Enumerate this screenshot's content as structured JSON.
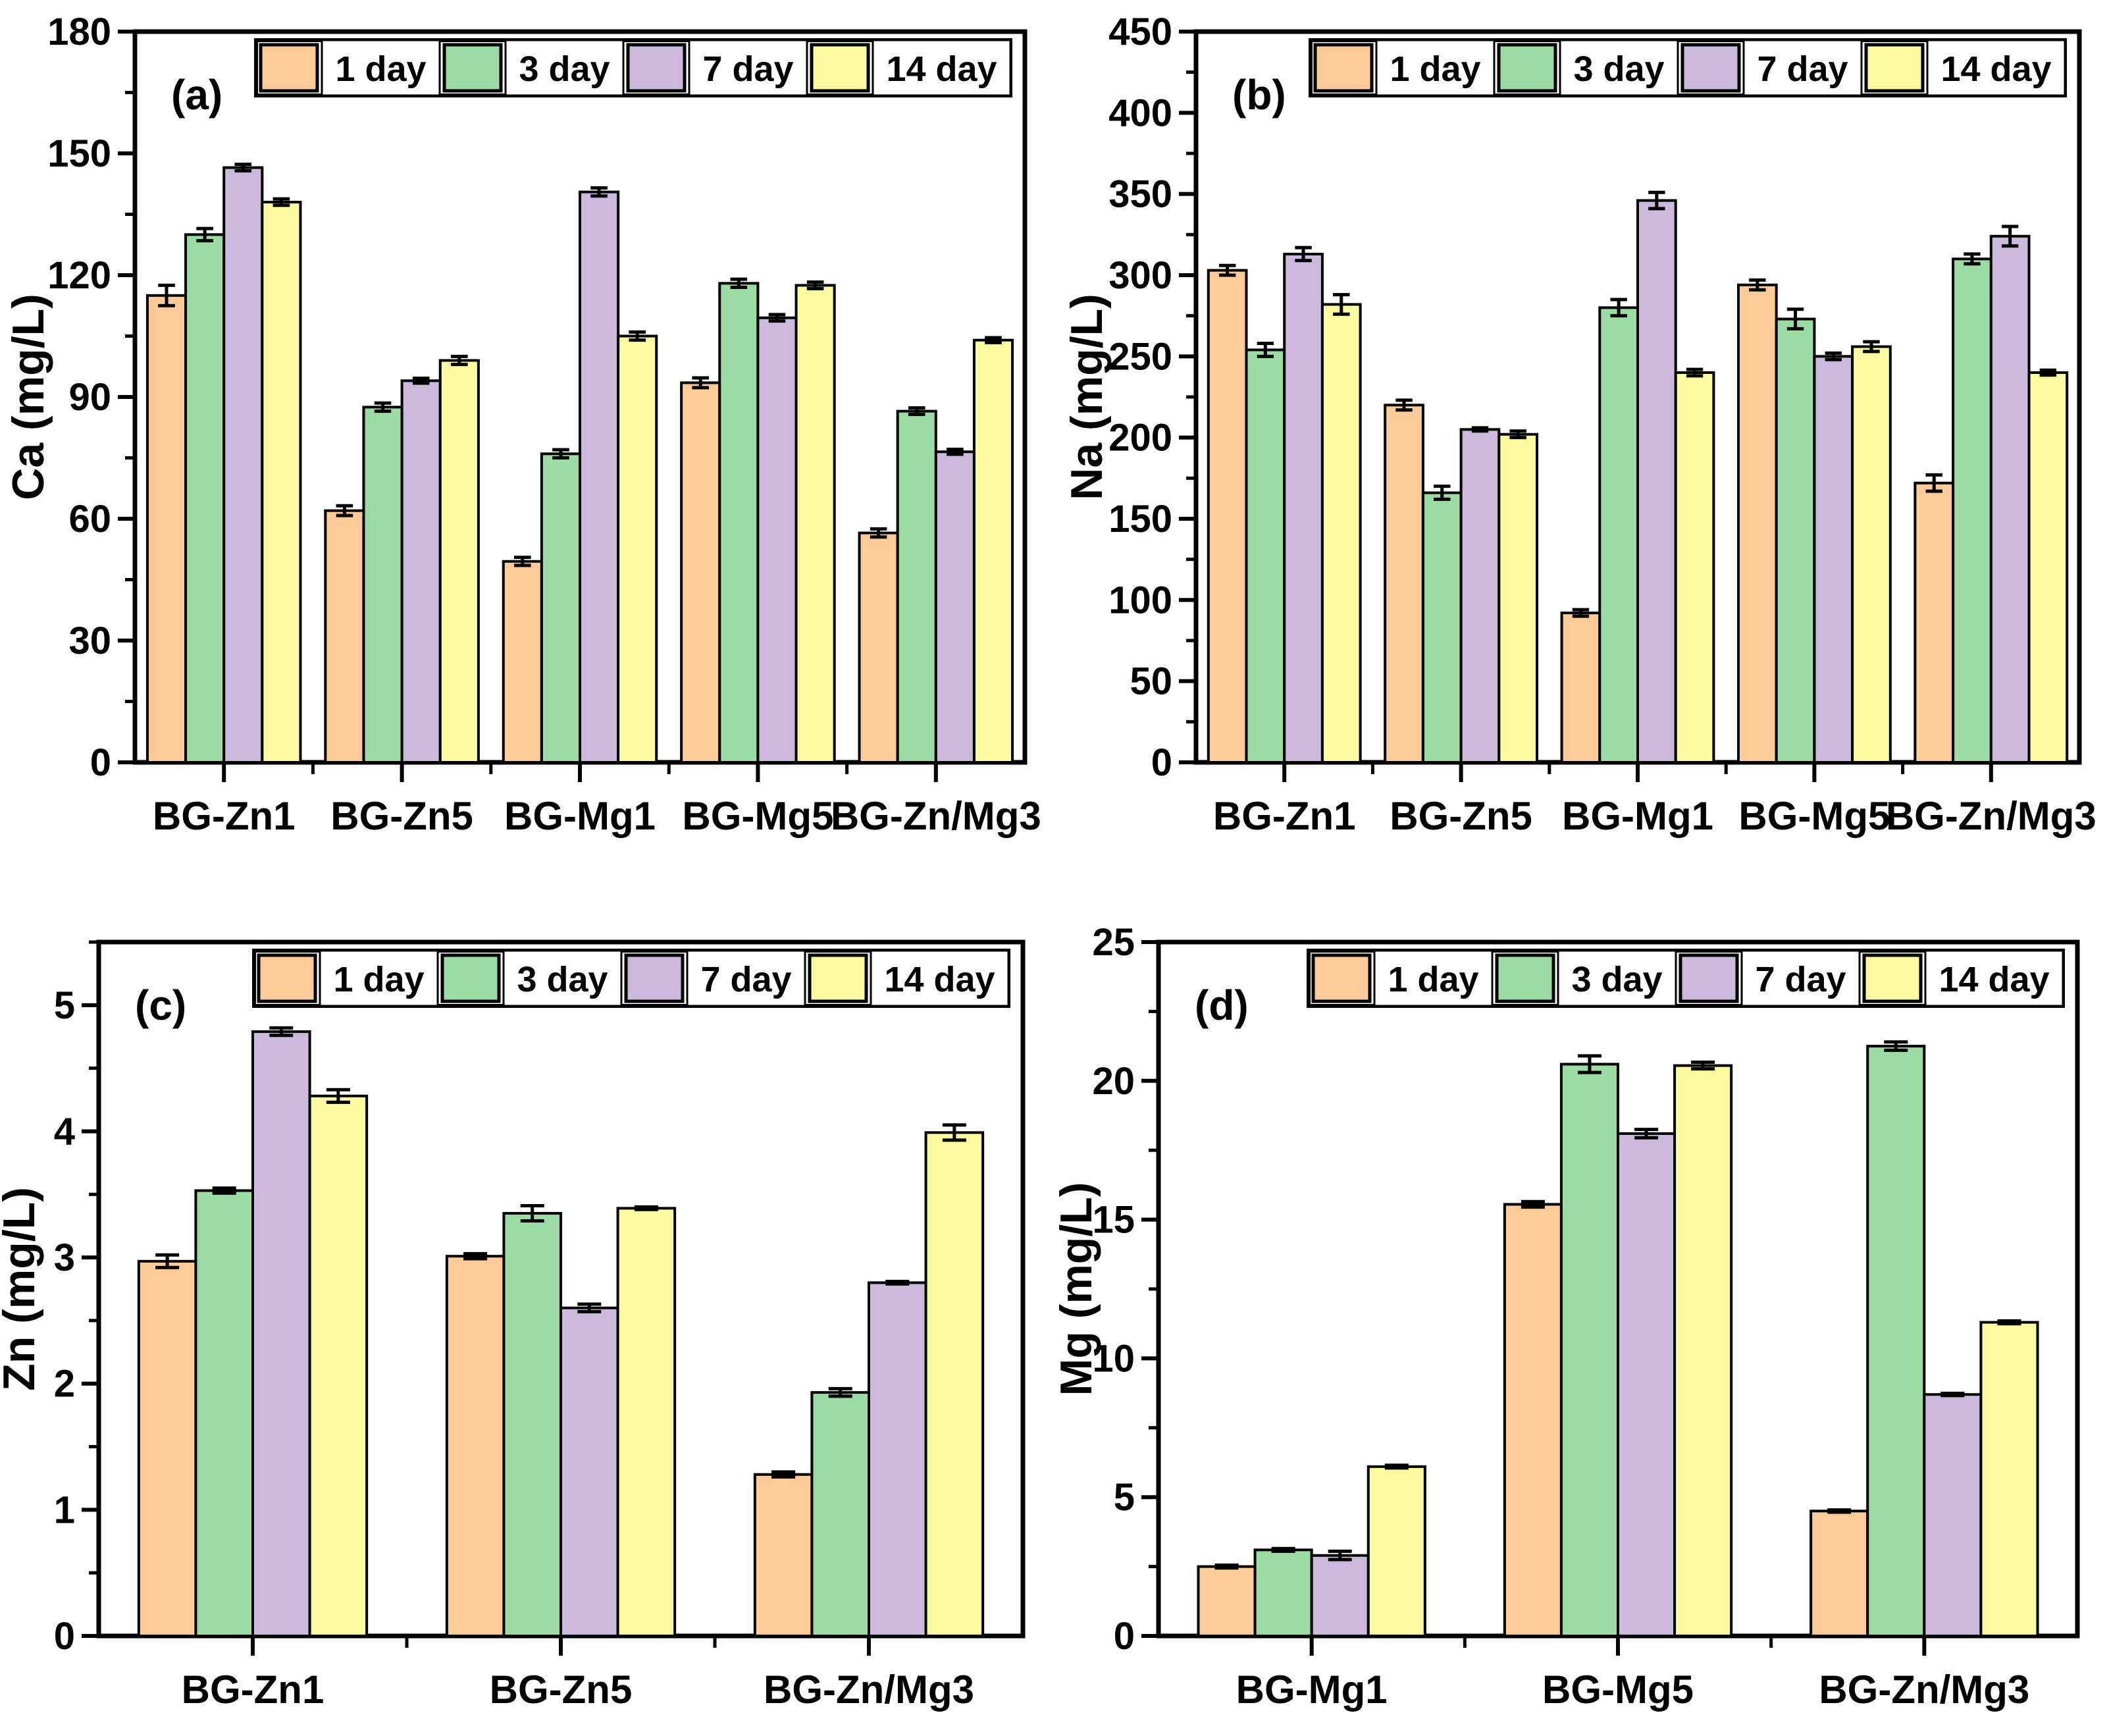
{
  "figure": {
    "background": "#ffffff",
    "foreground": "#000000",
    "legend_labels": [
      "1 day",
      "3 day",
      "7 day",
      "14 day"
    ],
    "series_colors": {
      "1 day": "#FCCB97",
      "3 day": "#9BDCA4",
      "7 day": "#CBBADC",
      "14 day": "#FDFB9F"
    },
    "bar_border_color": "#000000"
  },
  "chart_data": [
    {
      "type": "bar",
      "panel_label": "(a)",
      "ylabel": "Ca (mg/L)",
      "xlabel": "",
      "ylim": [
        0,
        180
      ],
      "ytick_major": 30,
      "ytick_minor": 15,
      "yticks": [
        0,
        30,
        60,
        90,
        120,
        150,
        180
      ],
      "grid": false,
      "legend_position": "top-right-inside",
      "categories": [
        "BG-Zn1",
        "BG-Zn5",
        "BG-Mg1",
        "BG-Mg5",
        "BG-Zn/Mg3"
      ],
      "series": [
        {
          "name": "1 day",
          "values": [
            115,
            62,
            49.5,
            93.5,
            56.5
          ],
          "errors": [
            2.5,
            1.2,
            1.0,
            1.2,
            1.0
          ]
        },
        {
          "name": "3 day",
          "values": [
            130,
            87.5,
            76,
            118,
            86.5
          ],
          "errors": [
            1.5,
            1.0,
            1.0,
            1.0,
            0.8
          ]
        },
        {
          "name": "7 day",
          "values": [
            146.5,
            94,
            140.5,
            109.5,
            76.5
          ],
          "errors": [
            0.8,
            0.6,
            1.0,
            0.8,
            0.6
          ]
        },
        {
          "name": "14 day",
          "values": [
            138,
            99,
            105,
            117.5,
            104
          ],
          "errors": [
            0.8,
            1.0,
            1.0,
            0.8,
            0.6
          ]
        }
      ]
    },
    {
      "type": "bar",
      "panel_label": "(b)",
      "ylabel": "Na (mg/L)",
      "xlabel": "",
      "ylim": [
        0,
        450
      ],
      "ytick_major": 50,
      "ytick_minor": 25,
      "yticks": [
        0,
        50,
        100,
        150,
        200,
        250,
        300,
        350,
        400,
        450
      ],
      "grid": false,
      "legend_position": "top-right-inside",
      "categories": [
        "BG-Zn1",
        "BG-Zn5",
        "BG-Mg1",
        "BG-Mg5",
        "BG-Zn/Mg3"
      ],
      "series": [
        {
          "name": "1 day",
          "values": [
            303,
            220,
            92,
            294,
            172
          ],
          "errors": [
            3,
            3,
            2,
            3,
            5
          ]
        },
        {
          "name": "3 day",
          "values": [
            254,
            166,
            280,
            273,
            310
          ],
          "errors": [
            4,
            4,
            5,
            6,
            3
          ]
        },
        {
          "name": "7 day",
          "values": [
            313,
            205,
            346,
            250,
            324
          ],
          "errors": [
            4,
            1,
            5,
            2,
            6
          ]
        },
        {
          "name": "14 day",
          "values": [
            282,
            202,
            240,
            256,
            240
          ],
          "errors": [
            6,
            2,
            2,
            3,
            1.5
          ]
        }
      ]
    },
    {
      "type": "bar",
      "panel_label": "(c)",
      "ylabel": "Zn (mg/L)",
      "xlabel": "",
      "ylim": [
        0,
        5.5
      ],
      "ytick_major": 1,
      "ytick_minor": 0.5,
      "yticks": [
        0,
        1,
        2,
        3,
        4,
        5
      ],
      "grid": false,
      "legend_position": "top-right-inside",
      "categories": [
        "BG-Zn1",
        "BG-Zn5",
        "BG-Zn/Mg3"
      ],
      "series": [
        {
          "name": "1 day",
          "values": [
            2.97,
            3.01,
            1.28
          ],
          "errors": [
            0.05,
            0.02,
            0.02
          ]
        },
        {
          "name": "3 day",
          "values": [
            3.53,
            3.35,
            1.93
          ],
          "errors": [
            0.02,
            0.06,
            0.03
          ]
        },
        {
          "name": "7 day",
          "values": [
            4.79,
            2.6,
            2.8
          ],
          "errors": [
            0.03,
            0.03,
            0.01
          ]
        },
        {
          "name": "14 day",
          "values": [
            4.28,
            3.39,
            3.99
          ],
          "errors": [
            0.05,
            0.01,
            0.06
          ]
        }
      ]
    },
    {
      "type": "bar",
      "panel_label": "(d)",
      "ylabel": "Mg (mg/L)",
      "xlabel": "",
      "ylim": [
        0,
        25
      ],
      "ytick_major": 5,
      "ytick_minor": 2.5,
      "yticks": [
        0,
        5,
        10,
        15,
        20,
        25
      ],
      "grid": false,
      "legend_position": "top-right-inside",
      "categories": [
        "BG-Mg1",
        "BG-Mg5",
        "BG-Zn/Mg3"
      ],
      "series": [
        {
          "name": "1 day",
          "values": [
            2.5,
            15.55,
            4.5
          ],
          "errors": [
            0.05,
            0.1,
            0.04
          ]
        },
        {
          "name": "3 day",
          "values": [
            3.1,
            20.6,
            21.25
          ],
          "errors": [
            0.05,
            0.3,
            0.15
          ]
        },
        {
          "name": "7 day",
          "values": [
            2.9,
            18.1,
            8.7
          ],
          "errors": [
            0.15,
            0.15,
            0.04
          ]
        },
        {
          "name": "14 day",
          "values": [
            6.1,
            20.55,
            11.3
          ],
          "errors": [
            0.05,
            0.12,
            0.05
          ]
        }
      ]
    }
  ]
}
